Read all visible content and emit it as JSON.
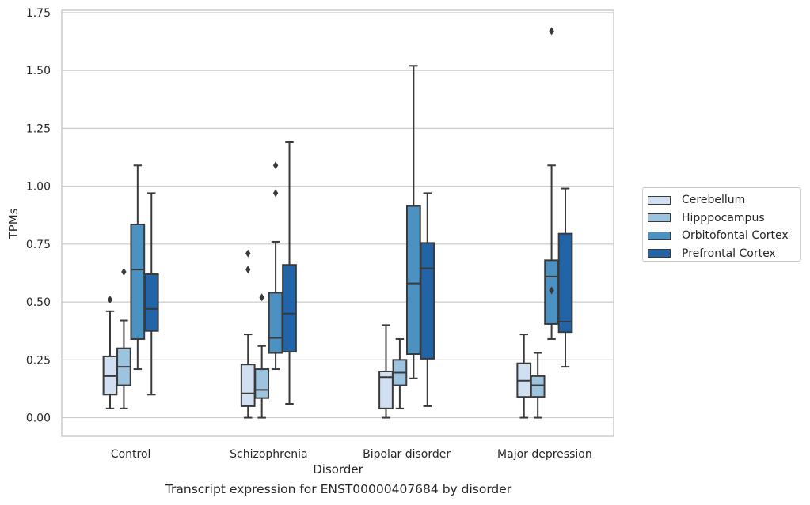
{
  "chart_data": {
    "type": "box",
    "caption": "Transcript expression for ENST00000407684 by disorder",
    "xlabel": "Disorder",
    "ylabel": "TPMs",
    "ylim": [
      -0.08,
      1.76
    ],
    "yticks": [
      "0.00",
      "0.25",
      "0.50",
      "0.75",
      "1.00",
      "1.25",
      "1.50",
      "1.75"
    ],
    "grid": "horizontal",
    "legend_position": "right",
    "categories": [
      "Control",
      "Schizophrenia",
      "Bipolar disorder",
      "Major depression"
    ],
    "series": [
      {
        "name": "Cerebellum",
        "color": "#d0e0f2",
        "boxes": [
          {
            "whislo": 0.04,
            "q1": 0.1,
            "med": 0.18,
            "q3": 0.265,
            "whishi": 0.46,
            "fliers": [
              0.51
            ]
          },
          {
            "whislo": 0.0,
            "q1": 0.05,
            "med": 0.105,
            "q3": 0.23,
            "whishi": 0.36,
            "fliers": [
              0.64,
              0.71
            ]
          },
          {
            "whislo": 0.0,
            "q1": 0.04,
            "med": 0.175,
            "q3": 0.2,
            "whishi": 0.4,
            "fliers": []
          },
          {
            "whislo": 0.0,
            "q1": 0.09,
            "med": 0.16,
            "q3": 0.235,
            "whishi": 0.36,
            "fliers": []
          }
        ]
      },
      {
        "name": "Hipppocampus",
        "color": "#9dc4de",
        "boxes": [
          {
            "whislo": 0.04,
            "q1": 0.14,
            "med": 0.22,
            "q3": 0.3,
            "whishi": 0.42,
            "fliers": [
              0.63
            ]
          },
          {
            "whislo": 0.0,
            "q1": 0.085,
            "med": 0.12,
            "q3": 0.21,
            "whishi": 0.31,
            "fliers": [
              0.52
            ]
          },
          {
            "whislo": 0.04,
            "q1": 0.14,
            "med": 0.195,
            "q3": 0.25,
            "whishi": 0.34,
            "fliers": []
          },
          {
            "whislo": 0.0,
            "q1": 0.09,
            "med": 0.14,
            "q3": 0.18,
            "whishi": 0.28,
            "fliers": []
          }
        ]
      },
      {
        "name": "Orbitofontal Cortex",
        "color": "#4b91c2",
        "boxes": [
          {
            "whislo": 0.21,
            "q1": 0.34,
            "med": 0.64,
            "q3": 0.835,
            "whishi": 1.09,
            "fliers": []
          },
          {
            "whislo": 0.21,
            "q1": 0.28,
            "med": 0.345,
            "q3": 0.54,
            "whishi": 0.76,
            "fliers": [
              0.97,
              1.09
            ]
          },
          {
            "whislo": 0.17,
            "q1": 0.275,
            "med": 0.58,
            "q3": 0.915,
            "whishi": 1.52,
            "fliers": []
          },
          {
            "whislo": 0.34,
            "q1": 0.405,
            "med": 0.61,
            "q3": 0.68,
            "whishi": 1.09,
            "fliers": [
              0.55,
              1.67
            ]
          }
        ]
      },
      {
        "name": "Prefrontal Cortex",
        "color": "#2164a8",
        "boxes": [
          {
            "whislo": 0.1,
            "q1": 0.375,
            "med": 0.47,
            "q3": 0.62,
            "whishi": 0.97,
            "fliers": []
          },
          {
            "whislo": 0.06,
            "q1": 0.285,
            "med": 0.45,
            "q3": 0.66,
            "whishi": 1.19,
            "fliers": []
          },
          {
            "whislo": 0.05,
            "q1": 0.255,
            "med": 0.645,
            "q3": 0.755,
            "whishi": 0.97,
            "fliers": []
          },
          {
            "whislo": 0.22,
            "q1": 0.37,
            "med": 0.415,
            "q3": 0.795,
            "whishi": 0.99,
            "fliers": []
          }
        ]
      }
    ]
  }
}
